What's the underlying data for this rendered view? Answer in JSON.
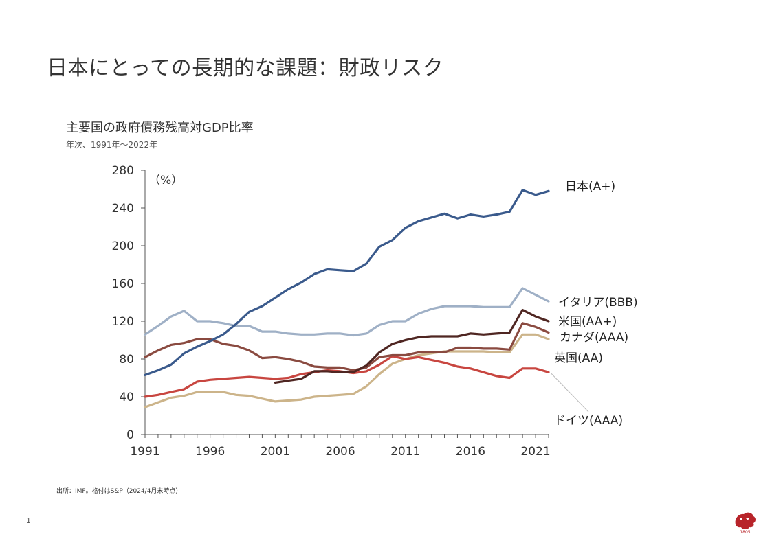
{
  "slide": {
    "title": "日本にとっての長期的な課題：財政リスク",
    "page_number": "1",
    "source_note": "出所：IMF。格付はS&P（2024/4月末時点）",
    "logo_year": "1805"
  },
  "colors": {
    "japan": "#3a5a8c",
    "italy": "#9fb0c6",
    "us": "#4f2622",
    "canada": "#8a4a40",
    "uk": "#ccb48a",
    "germany": "#c84640",
    "axis": "#555555",
    "leader": "#bbbbbb",
    "logo": "#b8242a"
  },
  "chart_data": {
    "type": "line",
    "title": "主要国の政府債務残高対GDP比率",
    "subtitle": "年次、1991年〜2022年",
    "unit_label": "（%）",
    "xlabel": "",
    "ylabel": "",
    "ylim": [
      0,
      280
    ],
    "xlim": [
      1991,
      2022
    ],
    "yticks": [
      "0",
      "40",
      "80",
      "120",
      "160",
      "200",
      "240",
      "280"
    ],
    "xticks": [
      "1991",
      "1996",
      "2001",
      "2006",
      "2011",
      "2016",
      "2021"
    ],
    "grid": false,
    "x": [
      1991,
      1992,
      1993,
      1994,
      1995,
      1996,
      1997,
      1998,
      1999,
      2000,
      2001,
      2002,
      2003,
      2004,
      2005,
      2006,
      2007,
      2008,
      2009,
      2010,
      2011,
      2012,
      2013,
      2014,
      2015,
      2016,
      2017,
      2018,
      2019,
      2020,
      2021,
      2022
    ],
    "series": [
      {
        "key": "japan",
        "name": "日本(A+)",
        "values": [
          63,
          68,
          74,
          86,
          93,
          99,
          106,
          117,
          130,
          136,
          145,
          154,
          161,
          170,
          175,
          174,
          173,
          181,
          199,
          206,
          219,
          226,
          230,
          234,
          229,
          233,
          231,
          233,
          236,
          259,
          254,
          258
        ]
      },
      {
        "key": "italy",
        "name": "イタリア(BBB)",
        "values": [
          106,
          115,
          125,
          131,
          120,
          120,
          118,
          115,
          115,
          109,
          109,
          107,
          106,
          106,
          107,
          107,
          105,
          107,
          116,
          120,
          120,
          128,
          133,
          136,
          136,
          136,
          135,
          135,
          135,
          155,
          148,
          141
        ]
      },
      {
        "key": "us",
        "name": "米国(AA+)",
        "values": [
          null,
          null,
          null,
          null,
          null,
          null,
          null,
          null,
          null,
          null,
          55,
          57,
          59,
          67,
          67,
          66,
          66,
          73,
          87,
          96,
          100,
          103,
          104,
          104,
          104,
          107,
          106,
          107,
          108,
          132,
          125,
          120
        ]
      },
      {
        "key": "canada",
        "name": "カナダ(AAA)",
        "values": [
          82,
          89,
          95,
          97,
          101,
          101,
          96,
          94,
          89,
          81,
          82,
          80,
          77,
          72,
          71,
          71,
          68,
          71,
          82,
          84,
          84,
          87,
          87,
          87,
          92,
          92,
          91,
          91,
          90,
          118,
          114,
          108
        ]
      },
      {
        "key": "uk",
        "name": "英国(AA)",
        "values": [
          29,
          34,
          39,
          41,
          45,
          45,
          45,
          42,
          41,
          38,
          35,
          36,
          37,
          40,
          41,
          42,
          43,
          51,
          64,
          75,
          80,
          84,
          86,
          88,
          88,
          88,
          88,
          87,
          87,
          106,
          106,
          101
        ]
      },
      {
        "key": "germany",
        "name": "ドイツ(AAA)",
        "values": [
          40,
          42,
          45,
          48,
          56,
          58,
          59,
          60,
          61,
          60,
          59,
          60,
          64,
          66,
          68,
          67,
          65,
          67,
          74,
          83,
          80,
          82,
          79,
          76,
          72,
          70,
          66,
          62,
          60,
          70,
          70,
          66
        ]
      }
    ]
  }
}
